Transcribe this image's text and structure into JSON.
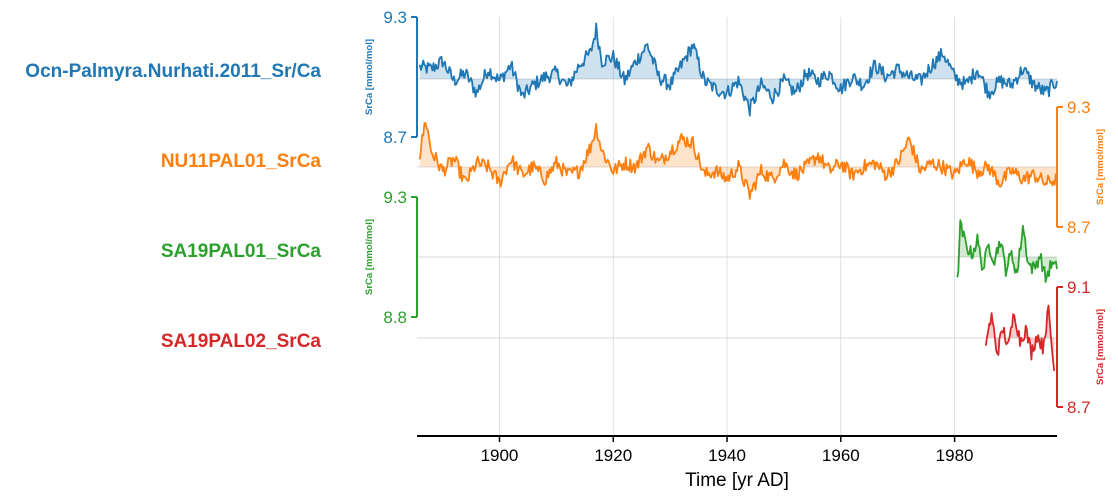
{
  "chart_data": {
    "type": "line",
    "title": "",
    "xlabel": "Time [yr AD]",
    "xlim": [
      1885.5,
      1998
    ],
    "xticks": [
      1900,
      1920,
      1940,
      1960,
      1980
    ],
    "grid": true,
    "series": [
      {
        "name": "Ocn-Palmyra.Nurhati.2011_Sr/Ca",
        "color": "#1f77b4",
        "axis_side": "left",
        "ylabel": "SrCa [mmol/mol]",
        "ylim": [
          8.7,
          9.3
        ],
        "yticks": [
          "9.3",
          "8.7"
        ],
        "mean": 8.99,
        "anchors": [
          [
            1886,
            9.05
          ],
          [
            1888,
            9.04
          ],
          [
            1890,
            9.08
          ],
          [
            1892,
            8.98
          ],
          [
            1894,
            9.02
          ],
          [
            1896,
            8.92
          ],
          [
            1898,
            9.04
          ],
          [
            1900,
            8.98
          ],
          [
            1902,
            9.06
          ],
          [
            1904,
            8.9
          ],
          [
            1906,
            8.96
          ],
          [
            1908,
            9.0
          ],
          [
            1910,
            9.02
          ],
          [
            1912,
            8.95
          ],
          [
            1914,
            9.06
          ],
          [
            1916,
            9.12
          ],
          [
            1917,
            9.24
          ],
          [
            1918,
            9.08
          ],
          [
            1920,
            9.1
          ],
          [
            1922,
            8.98
          ],
          [
            1924,
            9.08
          ],
          [
            1926,
            9.16
          ],
          [
            1928,
            9.0
          ],
          [
            1930,
            8.96
          ],
          [
            1932,
            9.06
          ],
          [
            1934,
            9.16
          ],
          [
            1936,
            8.98
          ],
          [
            1938,
            8.94
          ],
          [
            1940,
            8.92
          ],
          [
            1942,
            8.98
          ],
          [
            1944,
            8.84
          ],
          [
            1946,
            8.96
          ],
          [
            1948,
            8.9
          ],
          [
            1950,
            8.98
          ],
          [
            1952,
            8.92
          ],
          [
            1954,
            9.02
          ],
          [
            1956,
            8.98
          ],
          [
            1958,
            9.02
          ],
          [
            1960,
            8.94
          ],
          [
            1962,
            9.0
          ],
          [
            1964,
            8.96
          ],
          [
            1966,
            9.06
          ],
          [
            1968,
            9.0
          ],
          [
            1970,
            9.04
          ],
          [
            1972,
            9.0
          ],
          [
            1974,
            8.98
          ],
          [
            1976,
            9.06
          ],
          [
            1978,
            9.12
          ],
          [
            1980,
            9.0
          ],
          [
            1982,
            8.96
          ],
          [
            1984,
            9.04
          ],
          [
            1986,
            8.92
          ],
          [
            1988,
            8.98
          ],
          [
            1990,
            8.96
          ],
          [
            1992,
            9.04
          ],
          [
            1994,
            8.96
          ],
          [
            1996,
            8.92
          ],
          [
            1998,
            8.98
          ]
        ]
      },
      {
        "name": "NU11PAL01_SrCa",
        "color": "#ff7f0e",
        "axis_side": "right",
        "ylabel": "SrCa [mmol/mol]",
        "ylim": [
          8.7,
          9.3
        ],
        "yticks": [
          "9.3",
          "8.7"
        ],
        "mean": 9.0,
        "anchors": [
          [
            1886,
            9.06
          ],
          [
            1887,
            9.24
          ],
          [
            1888,
            9.08
          ],
          [
            1890,
            8.98
          ],
          [
            1892,
            9.04
          ],
          [
            1894,
            8.92
          ],
          [
            1896,
            9.02
          ],
          [
            1898,
            9.0
          ],
          [
            1900,
            8.92
          ],
          [
            1902,
            9.04
          ],
          [
            1904,
            8.96
          ],
          [
            1906,
            9.0
          ],
          [
            1908,
            8.94
          ],
          [
            1910,
            9.02
          ],
          [
            1912,
            8.96
          ],
          [
            1914,
            8.98
          ],
          [
            1916,
            9.1
          ],
          [
            1917,
            9.2
          ],
          [
            1918,
            9.08
          ],
          [
            1920,
            8.98
          ],
          [
            1922,
            9.02
          ],
          [
            1924,
            9.0
          ],
          [
            1926,
            9.1
          ],
          [
            1928,
            9.02
          ],
          [
            1930,
            9.08
          ],
          [
            1932,
            9.14
          ],
          [
            1934,
            9.12
          ],
          [
            1936,
            8.96
          ],
          [
            1938,
            8.98
          ],
          [
            1940,
            8.94
          ],
          [
            1942,
            9.0
          ],
          [
            1944,
            8.86
          ],
          [
            1946,
            8.98
          ],
          [
            1948,
            8.94
          ],
          [
            1950,
            9.02
          ],
          [
            1952,
            8.96
          ],
          [
            1954,
            9.0
          ],
          [
            1956,
            9.06
          ],
          [
            1958,
            8.98
          ],
          [
            1960,
            9.02
          ],
          [
            1962,
            8.96
          ],
          [
            1964,
            9.0
          ],
          [
            1966,
            9.02
          ],
          [
            1968,
            8.96
          ],
          [
            1970,
            9.02
          ],
          [
            1972,
            9.14
          ],
          [
            1974,
            8.98
          ],
          [
            1976,
            9.02
          ],
          [
            1978,
            9.0
          ],
          [
            1980,
            8.96
          ],
          [
            1982,
            9.04
          ],
          [
            1984,
            8.98
          ],
          [
            1986,
            9.0
          ],
          [
            1988,
            8.92
          ],
          [
            1990,
            8.98
          ],
          [
            1992,
            8.94
          ],
          [
            1994,
            8.96
          ],
          [
            1996,
            8.92
          ],
          [
            1998,
            8.94
          ]
        ]
      },
      {
        "name": "SA19PAL01_SrCa",
        "color": "#2ca02c",
        "axis_side": "left",
        "ylabel": "SrCa [mmol/mol]",
        "ylim": [
          8.8,
          9.3
        ],
        "yticks": [
          "9.3",
          "8.8"
        ],
        "mean": 9.05,
        "anchors": [
          [
            1980.5,
            8.94
          ],
          [
            1981,
            9.18
          ],
          [
            1982,
            9.1
          ],
          [
            1983,
            9.06
          ],
          [
            1984,
            9.12
          ],
          [
            1985,
            9.0
          ],
          [
            1986,
            9.1
          ],
          [
            1987,
            9.04
          ],
          [
            1988,
            9.12
          ],
          [
            1989,
            9.0
          ],
          [
            1990,
            9.06
          ],
          [
            1991,
            8.98
          ],
          [
            1992,
            9.18
          ],
          [
            1993,
            9.02
          ],
          [
            1994,
            9.0
          ],
          [
            1995,
            9.06
          ],
          [
            1996,
            8.96
          ],
          [
            1997,
            9.02
          ],
          [
            1998,
            9.0
          ]
        ]
      },
      {
        "name": "SA19PAL02_SrCa",
        "color": "#d62728",
        "axis_side": "right",
        "ylabel": "SrCa [mmol/mol]",
        "ylim": [
          8.7,
          9.1
        ],
        "yticks": [
          "9.1",
          "8.7"
        ],
        "mean": 8.93,
        "anchors": [
          [
            1985.5,
            8.92
          ],
          [
            1986.5,
            9.0
          ],
          [
            1987.5,
            8.88
          ],
          [
            1988.5,
            8.96
          ],
          [
            1989.5,
            8.9
          ],
          [
            1990.5,
            9.02
          ],
          [
            1991.5,
            8.92
          ],
          [
            1992.5,
            8.96
          ],
          [
            1993.5,
            8.88
          ],
          [
            1994.5,
            8.94
          ],
          [
            1995.5,
            8.9
          ],
          [
            1996.5,
            9.02
          ],
          [
            1997.5,
            8.82
          ]
        ]
      }
    ]
  }
}
